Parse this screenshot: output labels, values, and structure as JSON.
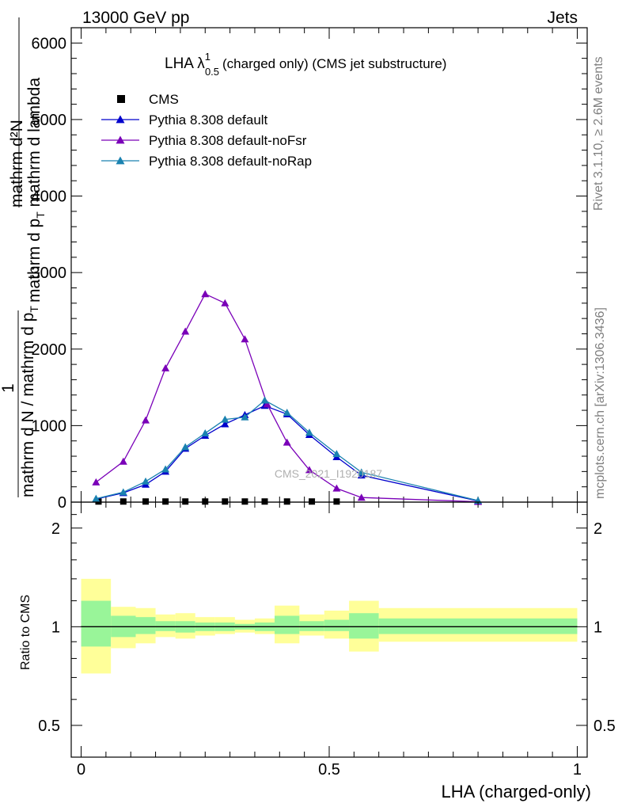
{
  "header": {
    "left": "13000 GeV pp",
    "right": "Jets"
  },
  "side_labels": {
    "rivet": "Rivet 3.1.10, ≥ 2.6M events",
    "mcplots": "mcplots.cern.ch [arXiv:1306.3436]"
  },
  "watermark": "CMS_2021_I1920187",
  "colors": {
    "cms": "#000000",
    "default": "#0000cc",
    "noFsr": "#7a00b8",
    "noRap": "#1a82b0",
    "band_inner": "#99f599",
    "band_outer": "#ffff99"
  },
  "chart_data": [
    {
      "type": "line",
      "title_main": "LHA λ",
      "title_sup": "1",
      "title_sub": "0.5",
      "title_rest": "(charged only) (CMS jet substructure)",
      "ylabel_top_line1": "mathrm d²N",
      "ylabel_top_line2": "mathrm d p",
      "ylabel_top_sub2": "T",
      "ylabel_top_line2b": " mathrm d lambda",
      "ylabel_num": "1",
      "ylabel_den": "mathrm d N / mathrm d p",
      "ylabel_den_sub": "T",
      "ylim": [
        0,
        6200
      ],
      "yticks": [
        0,
        1000,
        2000,
        3000,
        4000,
        5000,
        6000
      ],
      "ytick_labels": [
        "0",
        "1000",
        "2000",
        "3000",
        "4000",
        "5000",
        "6000"
      ],
      "xlim": [
        -0.02,
        1.02
      ],
      "legend_position": "top-left",
      "series": [
        {
          "name": "CMS",
          "marker": "square",
          "x": [
            0.035,
            0.085,
            0.13,
            0.17,
            0.21,
            0.25,
            0.29,
            0.33,
            0.37,
            0.415,
            0.465,
            0.515
          ],
          "y": [
            8,
            8,
            8,
            8,
            8,
            8,
            8,
            8,
            8,
            8,
            8,
            8
          ]
        },
        {
          "name": "Pythia 8.308 default",
          "marker": "triangle",
          "x": [
            0.03,
            0.085,
            0.13,
            0.17,
            0.21,
            0.25,
            0.29,
            0.33,
            0.37,
            0.415,
            0.46,
            0.515,
            0.565,
            0.8
          ],
          "y": [
            40,
            120,
            230,
            400,
            700,
            870,
            1020,
            1140,
            1260,
            1150,
            880,
            590,
            350,
            15
          ]
        },
        {
          "name": "Pythia 8.308 default-noFsr",
          "marker": "triangle",
          "x": [
            0.03,
            0.085,
            0.13,
            0.17,
            0.21,
            0.25,
            0.29,
            0.33,
            0.375,
            0.415,
            0.46,
            0.515,
            0.565,
            0.8
          ],
          "y": [
            260,
            530,
            1070,
            1750,
            2230,
            2720,
            2600,
            2130,
            1280,
            780,
            420,
            180,
            60,
            5
          ]
        },
        {
          "name": "Pythia 8.308 default-noRap",
          "marker": "triangle",
          "x": [
            0.03,
            0.085,
            0.13,
            0.17,
            0.21,
            0.25,
            0.29,
            0.33,
            0.37,
            0.415,
            0.46,
            0.515,
            0.565,
            0.8
          ],
          "y": [
            45,
            130,
            270,
            430,
            720,
            900,
            1080,
            1110,
            1330,
            1170,
            910,
            630,
            390,
            20
          ]
        }
      ]
    },
    {
      "type": "area",
      "ylabel": "Ratio to CMS",
      "xlabel": "LHA (charged-only)",
      "ylim": [
        0.4,
        2.4
      ],
      "log_scale_y": true,
      "yticks": [
        0.5,
        1,
        2
      ],
      "ytick_labels": [
        "0.5",
        "1",
        "2"
      ],
      "xlim": [
        -0.02,
        1.02
      ],
      "xticks": [
        0,
        0.5,
        1
      ],
      "xtick_labels": [
        "0",
        "0.5",
        "1"
      ],
      "bins": [
        {
          "lo": 0.0,
          "hi": 0.06,
          "in_lo": 0.87,
          "in_hi": 1.2,
          "out_lo": 0.72,
          "out_hi": 1.4
        },
        {
          "lo": 0.06,
          "hi": 0.11,
          "in_lo": 0.93,
          "in_hi": 1.08,
          "out_lo": 0.86,
          "out_hi": 1.15
        },
        {
          "lo": 0.11,
          "hi": 0.15,
          "in_lo": 0.95,
          "in_hi": 1.07,
          "out_lo": 0.89,
          "out_hi": 1.14
        },
        {
          "lo": 0.15,
          "hi": 0.19,
          "in_lo": 0.97,
          "in_hi": 1.04,
          "out_lo": 0.93,
          "out_hi": 1.09
        },
        {
          "lo": 0.19,
          "hi": 0.23,
          "in_lo": 0.96,
          "in_hi": 1.04,
          "out_lo": 0.92,
          "out_hi": 1.1
        },
        {
          "lo": 0.23,
          "hi": 0.27,
          "in_lo": 0.97,
          "in_hi": 1.03,
          "out_lo": 0.94,
          "out_hi": 1.07
        },
        {
          "lo": 0.27,
          "hi": 0.31,
          "in_lo": 0.97,
          "in_hi": 1.03,
          "out_lo": 0.95,
          "out_hi": 1.07
        },
        {
          "lo": 0.31,
          "hi": 0.35,
          "in_lo": 0.98,
          "in_hi": 1.02,
          "out_lo": 0.96,
          "out_hi": 1.05
        },
        {
          "lo": 0.35,
          "hi": 0.39,
          "in_lo": 0.97,
          "in_hi": 1.03,
          "out_lo": 0.95,
          "out_hi": 1.06
        },
        {
          "lo": 0.39,
          "hi": 0.44,
          "in_lo": 0.95,
          "in_hi": 1.08,
          "out_lo": 0.89,
          "out_hi": 1.16
        },
        {
          "lo": 0.44,
          "hi": 0.49,
          "in_lo": 0.97,
          "in_hi": 1.04,
          "out_lo": 0.94,
          "out_hi": 1.09
        },
        {
          "lo": 0.49,
          "hi": 0.54,
          "in_lo": 0.97,
          "in_hi": 1.05,
          "out_lo": 0.92,
          "out_hi": 1.12
        },
        {
          "lo": 0.54,
          "hi": 0.6,
          "in_lo": 0.92,
          "in_hi": 1.1,
          "out_lo": 0.84,
          "out_hi": 1.2
        },
        {
          "lo": 0.6,
          "hi": 1.0,
          "in_lo": 0.95,
          "in_hi": 1.06,
          "out_lo": 0.9,
          "out_hi": 1.14
        }
      ]
    }
  ]
}
